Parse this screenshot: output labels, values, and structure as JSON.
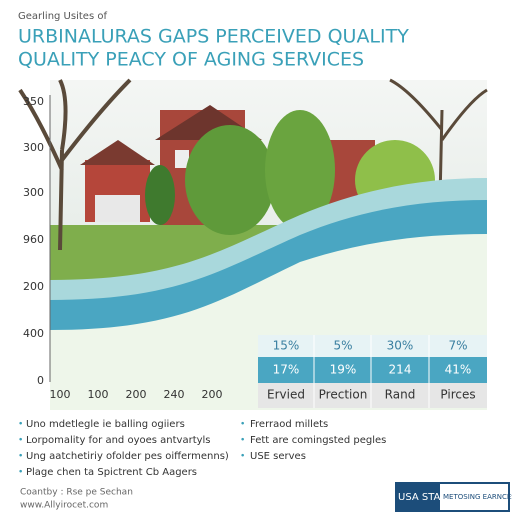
{
  "header": {
    "kicker": "Gearling Usites of",
    "title": [
      "URBINALURAS GAPS PERCEIVED QUALITY",
      "QUALITY PEACY OF AGING SERVICES"
    ]
  },
  "axis": {
    "y_labels": [
      "350",
      "300",
      "300",
      "960",
      "200",
      "400",
      "0"
    ],
    "x_labels": [
      "100",
      "100",
      "200",
      "240",
      "200"
    ]
  },
  "table": {
    "rows": [
      [
        "15%",
        "5%",
        "30%",
        "7%"
      ],
      [
        "17%",
        "19%",
        "214",
        "41%"
      ],
      [
        "Ervied",
        "Prection",
        "Rand",
        "Pirces"
      ]
    ]
  },
  "legend": {
    "left": [
      "Uno mdetlegle ie balling ogiiers",
      "Lorpomality for and oyoes antvartyls",
      "Ung aatchetiriy ofolder pes oiffermenns)",
      "Plage chen ta Spictrent Cb Aagers"
    ],
    "right": [
      "Frerraod millets",
      "Fett are comingsted pegles",
      "USE serves"
    ]
  },
  "footer": {
    "source": "Coantby : Rse pe Sechan",
    "url": "www.Allyirocet.com",
    "logos": [
      "USA STAUCS",
      "METOSING EARNCES"
    ]
  }
}
